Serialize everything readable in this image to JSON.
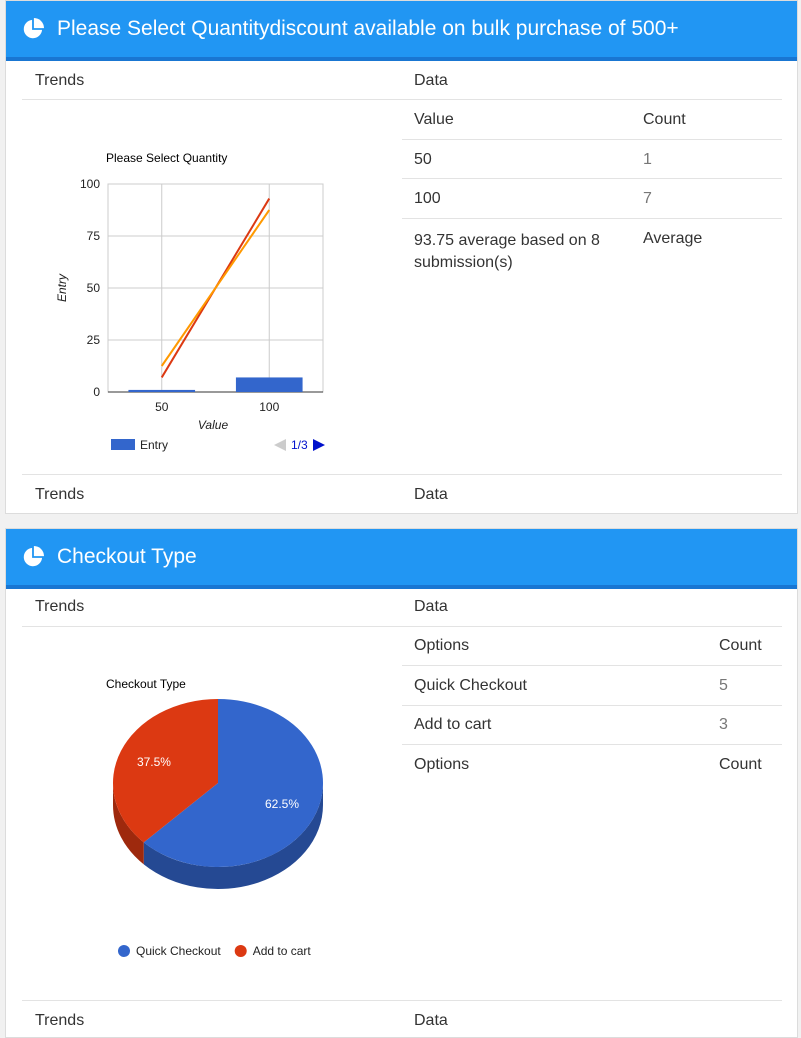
{
  "sections": [
    {
      "title": "Please Select Quantitydiscount available on bulk purchase of 500+",
      "trends_label": "Trends",
      "data_label": "Data",
      "table": {
        "headers": [
          "Value",
          "Count"
        ],
        "rows": [
          {
            "value": "50",
            "count": "1"
          },
          {
            "value": "100",
            "count": "7"
          }
        ],
        "average_text": "93.75 average based on 8 submission(s)",
        "average_label": "Average"
      },
      "footer_trends": "Trends",
      "footer_data": "Data"
    },
    {
      "title": "Checkout Type",
      "trends_label": "Trends",
      "data_label": "Data",
      "table": {
        "headers": [
          "Options",
          "Count"
        ],
        "rows": [
          {
            "option": "Quick Checkout",
            "count": "5"
          },
          {
            "option": "Add to cart",
            "count": "3"
          }
        ],
        "footer_headers": [
          "Options",
          "Count"
        ]
      },
      "footer_trends": "Trends",
      "footer_data": "Data"
    }
  ],
  "chart_data": [
    {
      "type": "bar",
      "title": "Please Select Quantity",
      "xlabel": "Value",
      "ylabel": "Entry",
      "categories": [
        "50",
        "100"
      ],
      "series": [
        {
          "name": "Entry",
          "values": [
            1,
            7
          ]
        }
      ],
      "trendlines": [
        {
          "color": "#dc3912",
          "values": [
            7,
            93
          ]
        },
        {
          "color": "#ff9900",
          "values": [
            12.5,
            87.5
          ]
        }
      ],
      "ylim": [
        0,
        100
      ],
      "yticks": [
        0,
        25,
        50,
        75,
        100
      ],
      "grid": true,
      "legend": "bottom",
      "pager": "1/3",
      "bar_color": "#3366cc"
    },
    {
      "type": "pie",
      "title": "Checkout Type",
      "labels": [
        "Quick Checkout",
        "Add to cart"
      ],
      "values": [
        5,
        3
      ],
      "percent_labels": [
        "62.5%",
        "37.5%"
      ],
      "colors": [
        "#3366cc",
        "#dc3912"
      ],
      "is3D": true,
      "legend": "bottom"
    }
  ]
}
